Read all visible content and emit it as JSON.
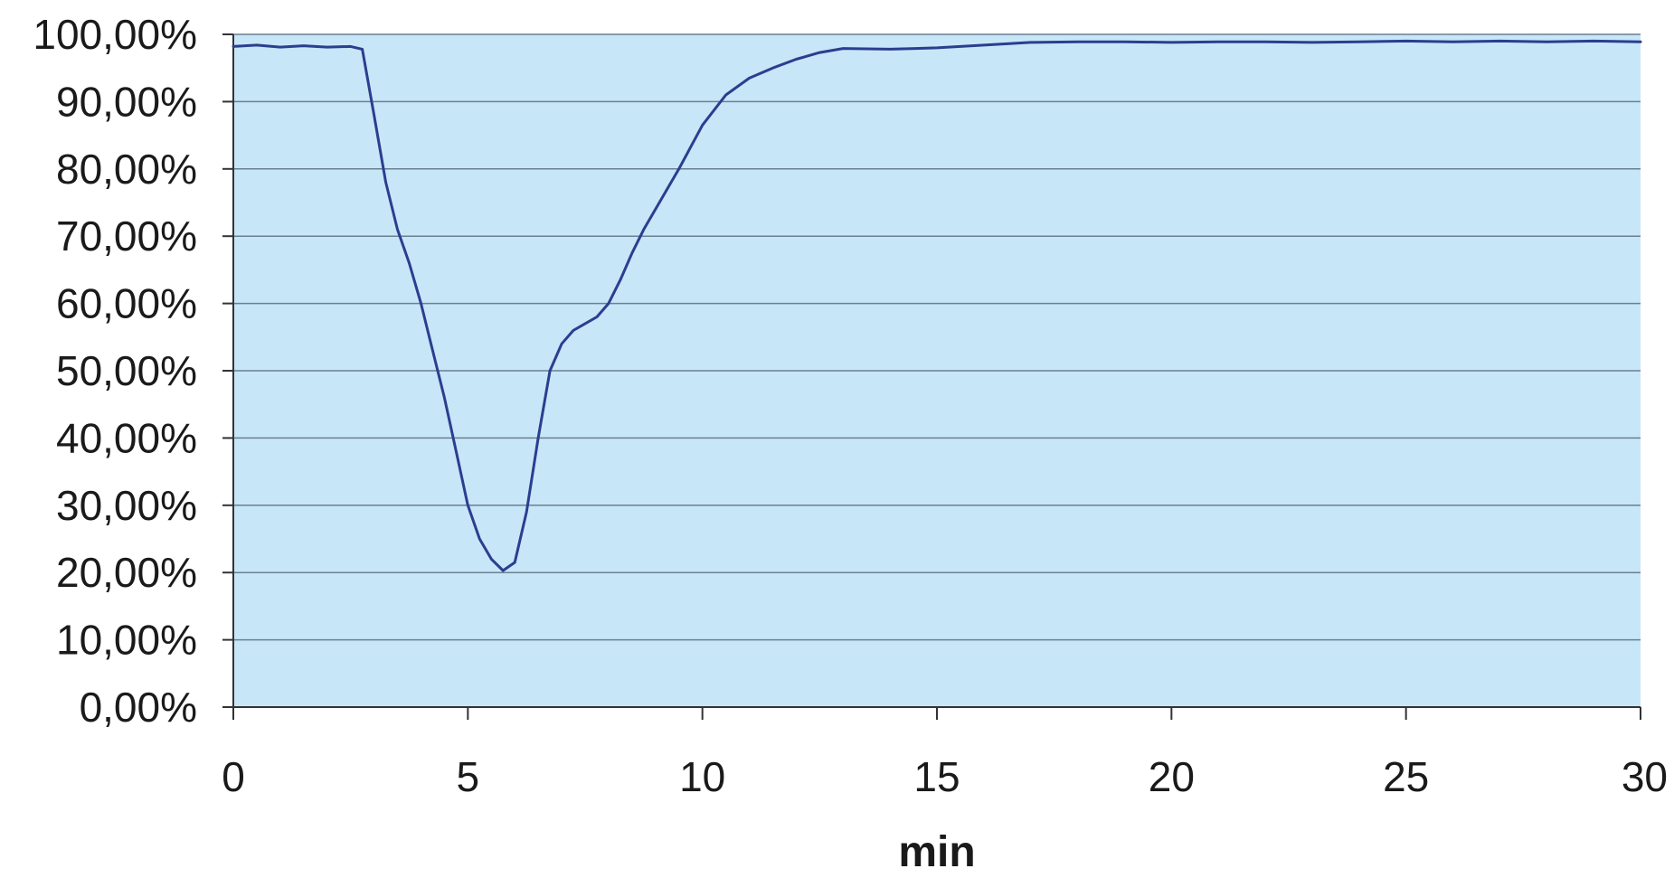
{
  "chart_data": {
    "type": "line",
    "title": "",
    "xlabel": "min",
    "ylabel": "",
    "xlim": [
      0,
      30
    ],
    "ylim": [
      0,
      100
    ],
    "x_ticks": [
      0,
      5,
      10,
      15,
      20,
      25,
      30
    ],
    "x_tick_labels": [
      "0",
      "5",
      "10",
      "15",
      "20",
      "25",
      "30"
    ],
    "y_ticks": [
      0,
      10,
      20,
      30,
      40,
      50,
      60,
      70,
      80,
      90,
      100
    ],
    "y_tick_labels": [
      "0,00%",
      "10,00%",
      "20,00%",
      "30,00%",
      "40,00%",
      "50,00%",
      "60,00%",
      "70,00%",
      "80,00%",
      "90,00%",
      "100,00%"
    ],
    "grid": "horizontal",
    "legend": "none",
    "colors": {
      "plot_background": "#c7e6f8",
      "line": "#2b3e8f",
      "gridline": "#6b7f90",
      "axis": "#333333"
    },
    "series": [
      {
        "x": [
          0,
          0.5,
          1.0,
          1.5,
          2.0,
          2.5,
          2.75,
          3.0,
          3.25,
          3.5,
          3.75,
          4.0,
          4.25,
          4.5,
          4.75,
          5.0,
          5.25,
          5.5,
          5.75,
          6.0,
          6.25,
          6.5,
          6.75,
          7.0,
          7.25,
          7.5,
          7.75,
          8.0,
          8.25,
          8.5,
          8.75,
          9.0,
          9.5,
          10.0,
          10.5,
          11.0,
          11.5,
          12.0,
          12.5,
          13.0,
          14.0,
          15.0,
          16.0,
          17.0,
          18.0,
          19.0,
          20.0,
          21.0,
          22.0,
          23.0,
          24.0,
          25.0,
          26.0,
          27.0,
          28.0,
          29.0,
          30.0
        ],
        "y": [
          98.2,
          98.4,
          98.1,
          98.3,
          98.1,
          98.2,
          97.8,
          88.0,
          78.0,
          71.0,
          66.0,
          60.0,
          53.0,
          46.0,
          38.0,
          30.0,
          25.0,
          22.0,
          20.3,
          21.5,
          29.0,
          40.0,
          50.0,
          54.0,
          56.0,
          57.0,
          58.0,
          60.0,
          63.5,
          67.5,
          71.0,
          74.0,
          80.0,
          86.5,
          91.0,
          93.5,
          95.0,
          96.3,
          97.3,
          97.9,
          97.8,
          98.0,
          98.4,
          98.8,
          98.9,
          98.9,
          98.8,
          98.9,
          98.9,
          98.8,
          98.9,
          99.0,
          98.9,
          99.0,
          98.9,
          99.0,
          98.9
        ]
      }
    ]
  }
}
